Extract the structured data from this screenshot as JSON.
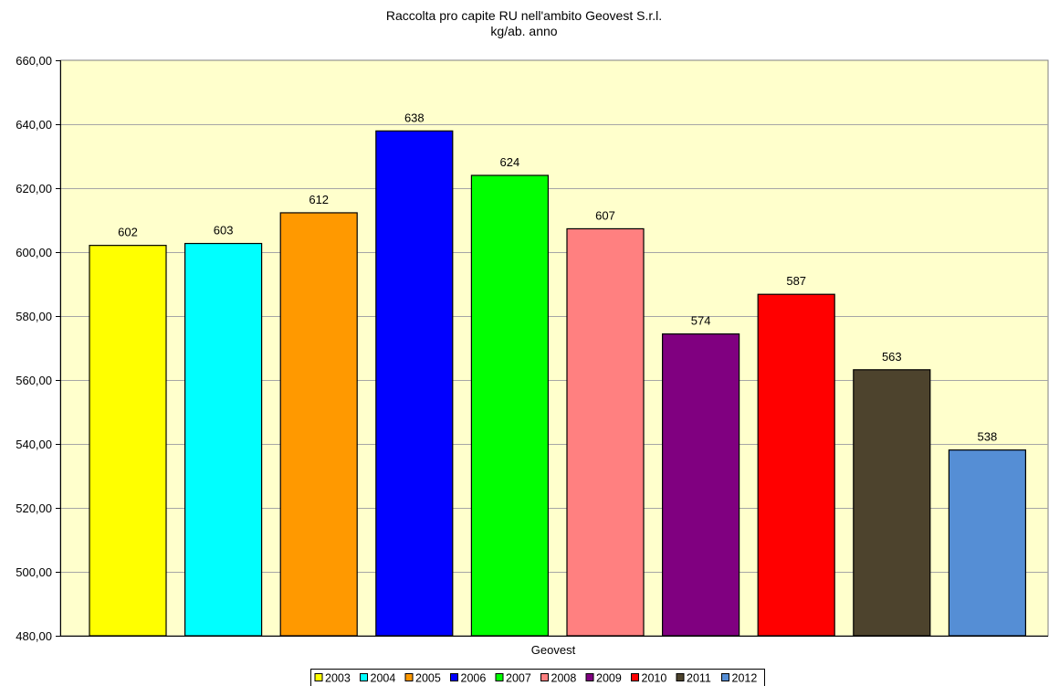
{
  "chart_data": {
    "type": "bar",
    "title": "Raccolta pro capite RU nell'ambito Geovest S.r.l.",
    "subtitle": "kg/ab. anno",
    "xlabel": "",
    "ylabel": "",
    "categories": [
      "Geovest"
    ],
    "category_label": "Geovest",
    "ylim": [
      480,
      660
    ],
    "y_ticks": [
      480,
      500,
      520,
      540,
      560,
      580,
      600,
      620,
      640,
      660
    ],
    "y_tick_labels": [
      "480,00",
      "500,00",
      "520,00",
      "540,00",
      "560,00",
      "580,00",
      "600,00",
      "620,00",
      "640,00",
      "660,00"
    ],
    "grid": true,
    "plot_background": "#FFFFCC",
    "legend_position": "bottom",
    "series": [
      {
        "name": "2003",
        "value": 602.1,
        "label": "602",
        "color": "#FFFF00"
      },
      {
        "name": "2004",
        "value": 602.7,
        "label": "603",
        "color": "#00FFFF"
      },
      {
        "name": "2005",
        "value": 612.3,
        "label": "612",
        "color": "#FF9900"
      },
      {
        "name": "2006",
        "value": 637.9,
        "label": "638",
        "color": "#0000FF"
      },
      {
        "name": "2007",
        "value": 624.0,
        "label": "624",
        "color": "#00FF00"
      },
      {
        "name": "2008",
        "value": 607.3,
        "label": "607",
        "color": "#FF8080"
      },
      {
        "name": "2009",
        "value": 574.4,
        "label": "574",
        "color": "#800080"
      },
      {
        "name": "2010",
        "value": 586.8,
        "label": "587",
        "color": "#FF0000"
      },
      {
        "name": "2011",
        "value": 563.2,
        "label": "563",
        "color": "#4D432D"
      },
      {
        "name": "2012",
        "value": 538.1,
        "label": "538",
        "color": "#558ED5"
      }
    ]
  }
}
